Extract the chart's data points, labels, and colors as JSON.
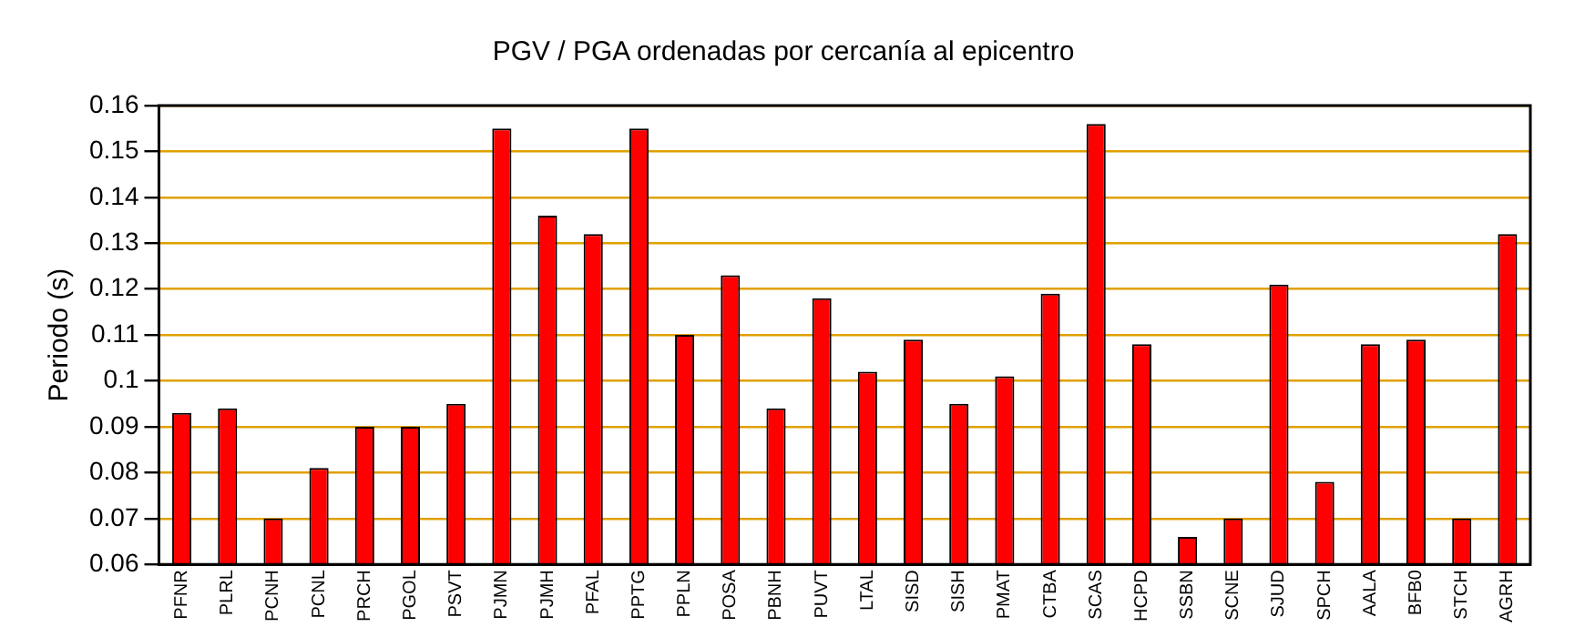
{
  "chart_data": {
    "type": "bar",
    "title": "PGV / PGA ordenadas por cercanía al epicentro",
    "ylabel": "Periodo (s)",
    "categories": [
      "PFNR",
      "PLRL",
      "PCNH",
      "PCNL",
      "PRCH",
      "PGOL",
      "PSVT",
      "PJMN",
      "PJMH",
      "PFAL",
      "PPTG",
      "PPLN",
      "POSA",
      "PBNH",
      "PUVT",
      "LTAL",
      "SISD",
      "SISH",
      "PMAT",
      "CTBA",
      "SCAS",
      "HCPD",
      "SSBN",
      "SCNE",
      "SJUD",
      "SPCH",
      "AALA",
      "BFB0",
      "STCH",
      "AGRH"
    ],
    "values": [
      0.093,
      0.094,
      0.07,
      0.081,
      0.09,
      0.09,
      0.095,
      0.155,
      0.136,
      0.132,
      0.155,
      0.11,
      0.123,
      0.094,
      0.118,
      0.102,
      0.109,
      0.095,
      0.101,
      0.119,
      0.156,
      0.108,
      0.066,
      0.07,
      0.121,
      0.078,
      0.108,
      0.109,
      0.07,
      0.132
    ],
    "color": "#ff0000",
    "ylim": [
      0.06,
      0.16
    ],
    "yticks": [
      0.06,
      0.07,
      0.08,
      0.09,
      0.1,
      0.11,
      0.12,
      0.13,
      0.14,
      0.15,
      0.16
    ],
    "grid": "y",
    "legend": false
  }
}
